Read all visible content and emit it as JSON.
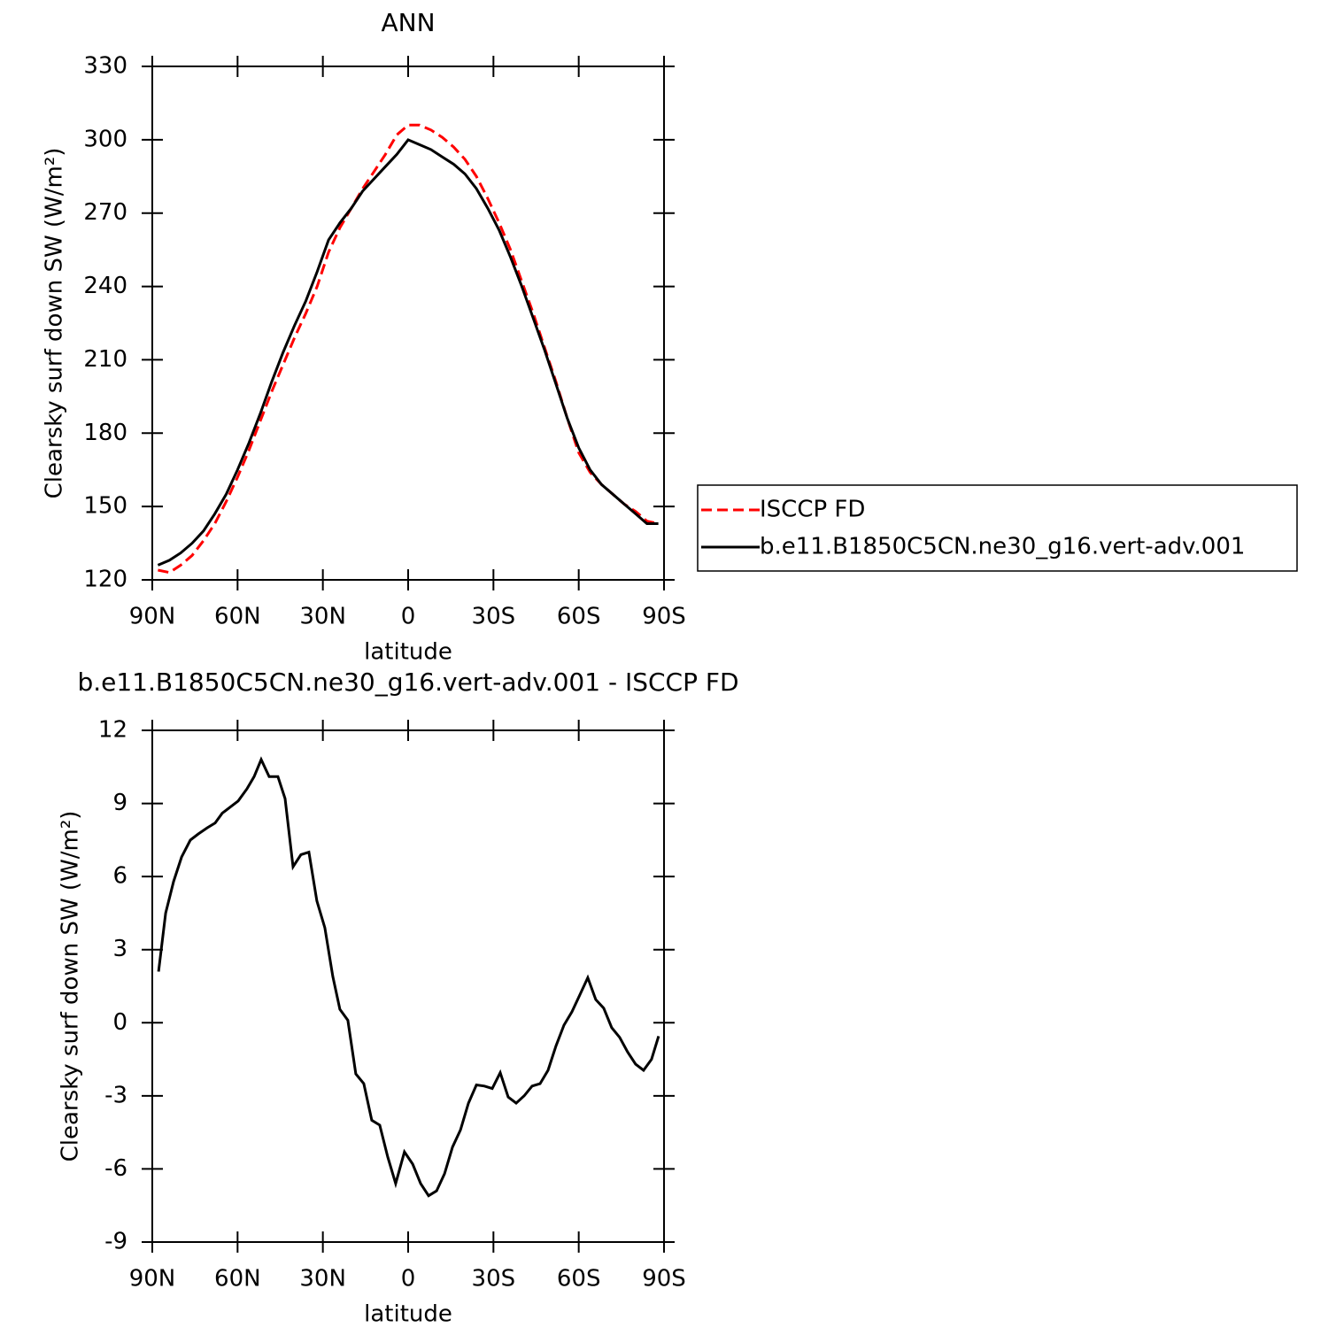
{
  "chart_data": [
    {
      "type": "line",
      "title": "ANN",
      "xlabel": "latitude",
      "ylabel": "Clearsky surf down SW (W/m²)",
      "x": [
        88,
        84,
        80,
        76,
        72,
        68,
        64,
        60,
        56,
        52,
        48,
        44,
        40,
        36,
        32,
        28,
        24,
        20,
        16,
        12,
        8,
        4,
        0,
        -4,
        -8,
        -12,
        -16,
        -20,
        -24,
        -28,
        -32,
        -36,
        -40,
        -44,
        -48,
        -52,
        -56,
        -60,
        -64,
        -68,
        -72,
        -76,
        -80,
        -84,
        -88
      ],
      "xlim": [
        90,
        -90
      ],
      "xticks": [
        {
          "value": 90,
          "label": "90N"
        },
        {
          "value": 60,
          "label": "60N"
        },
        {
          "value": 30,
          "label": "30N"
        },
        0,
        {
          "value": -30,
          "label": "30S"
        },
        {
          "value": -60,
          "label": "60S"
        },
        {
          "value": -90,
          "label": "90S"
        }
      ],
      "ylim": [
        120,
        330
      ],
      "yticks": [
        120,
        150,
        180,
        210,
        240,
        270,
        300,
        330
      ],
      "legend": "right",
      "series": [
        {
          "name": "ISCCP FD",
          "color": "#ff0000",
          "dashed": true,
          "values": [
            124,
            123,
            126,
            130,
            136,
            143,
            152,
            162,
            173,
            185,
            197,
            208,
            219,
            229,
            240,
            254,
            264,
            272,
            280,
            287,
            294,
            302,
            306,
            306,
            304,
            301,
            297,
            292,
            285,
            276,
            266,
            255,
            242,
            229,
            215,
            201,
            186,
            172,
            164,
            159,
            155,
            151,
            148,
            144,
            143
          ]
        },
        {
          "name": "b.e11.B1850C5CN.ne30_g16.vert-adv.001",
          "color": "#000000",
          "dashed": false,
          "values": [
            126,
            128,
            131,
            135,
            140,
            147,
            155,
            165,
            176,
            188,
            201,
            213,
            224,
            234,
            246,
            259,
            266,
            272,
            279,
            284,
            289,
            294,
            300,
            298,
            296,
            293,
            290,
            286,
            280,
            272,
            263,
            252,
            240,
            227,
            214,
            200,
            186,
            174,
            165,
            159,
            155,
            151,
            147,
            143,
            143
          ]
        }
      ]
    },
    {
      "type": "line",
      "title": "b.e11.B1850C5CN.ne30_g16.vert-adv.001 - ISCCP FD",
      "xlabel": "latitude",
      "ylabel": "Clearsky surf down SW (W/m²)",
      "x": [
        87.8,
        85.3,
        82.5,
        79.7,
        76.6,
        73.8,
        70.7,
        67.9,
        65.4,
        62.6,
        59.8,
        56.7,
        54.2,
        51.7,
        48.9,
        45.8,
        43.3,
        40.5,
        37.7,
        34.9,
        32.1,
        29.3,
        26.5,
        24.0,
        21.2,
        18.4,
        15.6,
        12.8,
        10.0,
        7.2,
        4.4,
        1.3,
        -1.6,
        -4.4,
        -7.2,
        -10.0,
        -12.8,
        -15.6,
        -18.4,
        -21.2,
        -24.0,
        -26.8,
        -29.6,
        -32.4,
        -35.2,
        -38.0,
        -40.8,
        -43.6,
        -46.4,
        -49.2,
        -52.0,
        -54.8,
        -57.6,
        -60.4,
        -63.2,
        -66.0,
        -68.8,
        -71.6,
        -74.4,
        -77.2,
        -80.0,
        -82.8,
        -85.6,
        -88.1
      ],
      "xlim": [
        90,
        -90
      ],
      "xticks": [
        {
          "value": 90,
          "label": "90N"
        },
        {
          "value": 60,
          "label": "60N"
        },
        {
          "value": 30,
          "label": "30N"
        },
        0,
        {
          "value": -30,
          "label": "30S"
        },
        {
          "value": -60,
          "label": "60S"
        },
        {
          "value": -90,
          "label": "90S"
        }
      ],
      "ylim": [
        -9,
        12
      ],
      "yticks": [
        -9,
        -6,
        -3,
        0,
        3,
        6,
        9,
        12
      ],
      "color": "#000000",
      "values": [
        2.1,
        4.5,
        5.8,
        6.8,
        7.5,
        7.75,
        8.0,
        8.2,
        8.6,
        8.85,
        9.1,
        9.6,
        10.1,
        10.8,
        10.1,
        10.1,
        9.2,
        6.4,
        6.9,
        7.0,
        5.0,
        3.9,
        1.9,
        0.55,
        0.1,
        -2.1,
        -2.5,
        -4.0,
        -4.2,
        -5.5,
        -6.6,
        -5.3,
        -5.8,
        -6.6,
        -7.1,
        -6.9,
        -6.2,
        -5.1,
        -4.4,
        -3.3,
        -2.55,
        -2.6,
        -2.7,
        -2.05,
        -3.05,
        -3.3,
        -3.0,
        -2.6,
        -2.5,
        -1.95,
        -0.95,
        -0.1,
        0.45,
        1.15,
        1.85,
        0.95,
        0.6,
        -0.2,
        -0.6,
        -1.2,
        -1.7,
        -1.95,
        -1.5,
        -0.55
      ]
    }
  ]
}
